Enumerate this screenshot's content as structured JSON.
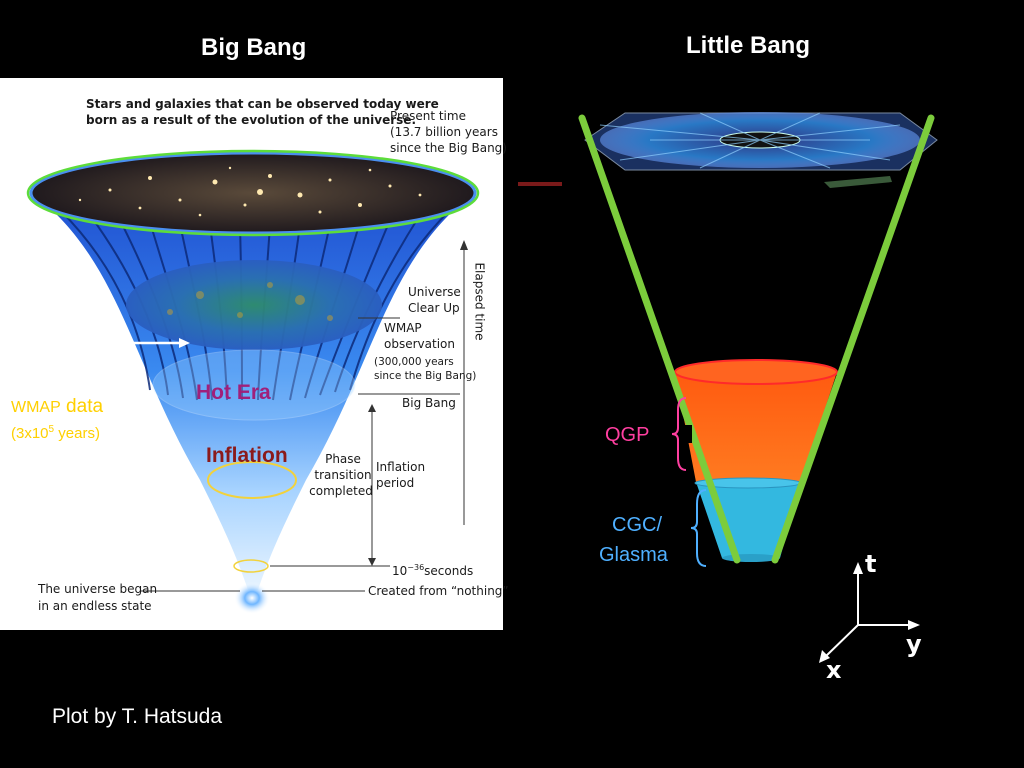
{
  "titles": {
    "big_bang": "Big Bang",
    "little_bang": "Little Bang"
  },
  "big_bang_panel": {
    "top_caption_line1": "Stars and galaxies that can be observed today were",
    "top_caption_line2": "born as a result of the evolution of the universe.",
    "present_time_line1": "Present time",
    "present_time_line2": "(13.7 billion years",
    "present_time_line3": "since the Big Bang)",
    "elapsed_time": "Elapsed time",
    "universe_clear_up_line1": "Universe",
    "universe_clear_up_line2": "Clear Up",
    "wmap_observation_line1": "WMAP",
    "wmap_observation_line2": "observation",
    "wmap_years_line1": "(300,000 years",
    "wmap_years_line2": "since the Big Bang)",
    "big_bang_marker": "Big Bang",
    "phase_transition_line1": "Phase",
    "phase_transition_line2": "transition",
    "phase_transition_line3": "completed",
    "inflation_period_line1": "Inflation",
    "inflation_period_line2": "period",
    "seconds_base": "10",
    "seconds_exp": "−36",
    "seconds_unit": "seconds",
    "created_from_nothing": "Created from “nothing”",
    "universe_began_line1": "The universe began",
    "universe_began_line2": "in an endless state",
    "hot_era": "Hot Era",
    "inflation": "Inflation"
  },
  "wmap_data": {
    "line1_a": "WMAP",
    "line1_b": " data",
    "line2_a": "(3x10",
    "line2_sup": "5",
    "line2_b": " years)"
  },
  "little_bang_panel": {
    "qgp": "QGP",
    "cgc_line1": "CGC/",
    "cgc_line2": "Glasma"
  },
  "axes": {
    "t": "t",
    "y": "y",
    "x": "x"
  },
  "credit": "Plot by T. Hatsuda",
  "colors": {
    "funnel_blue": "#2a6fe6",
    "rim_green": "#5ddc3a",
    "qgp_orange": "#ff6a1a",
    "glasma_cyan": "#33b8e0",
    "qgp_label": "#ff3fa0",
    "cgc_label": "#4fb0ff",
    "wmap_label": "#ffd000",
    "hot_era": "#a0207a",
    "inflation": "#8b1a1a"
  }
}
